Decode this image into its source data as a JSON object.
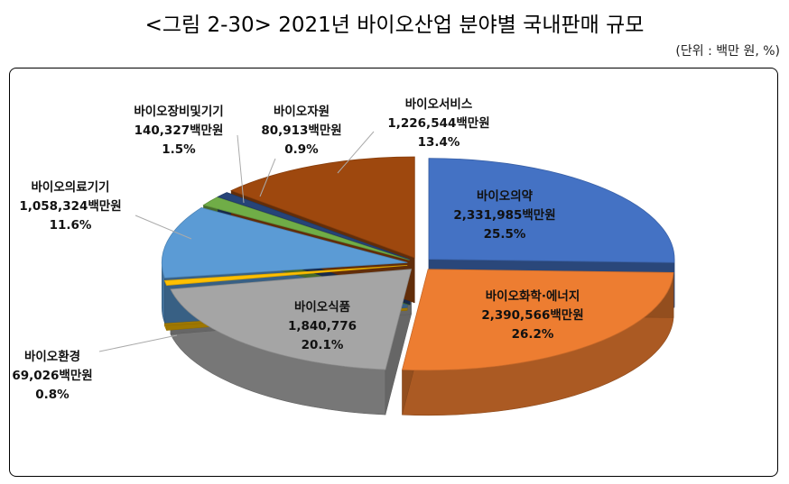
{
  "title": "<그림 2-30> 2021년 바이오산업 분야별 국내판매 규모",
  "unit": "(단위 : 백만 원, %)",
  "chart_data": {
    "type": "pie",
    "title": "<그림 2-30> 2021년 바이오산업 분야별 국내판매 규모",
    "unit": "(단위 : 백만 원, %)",
    "slices": [
      {
        "name": "바이오의약",
        "value": 2331985,
        "value_text": "2,331,985백만원",
        "percent": "25.5%",
        "color": "#4472C4"
      },
      {
        "name": "바이오화학·에너지",
        "value": 2390566,
        "value_text": "2,390,566백만원",
        "percent": "26.2%",
        "color": "#ED7D31"
      },
      {
        "name": "바이오식품",
        "value": 1840776,
        "value_text": "1,840,776",
        "percent": "20.1%",
        "color": "#A5A5A5"
      },
      {
        "name": "바이오환경",
        "value": 69026,
        "value_text": "69,026백만원",
        "percent": "0.8%",
        "color": "#FFC000"
      },
      {
        "name": "바이오의료기기",
        "value": 1058324,
        "value_text": "1,058,324백만원",
        "percent": "11.6%",
        "color": "#5B9BD5"
      },
      {
        "name": "바이오장비및기기",
        "value": 140327,
        "value_text": "140,327백만원",
        "percent": "1.5%",
        "color": "#70AD47"
      },
      {
        "name": "바이오자원",
        "value": 80913,
        "value_text": "80,913백만원",
        "percent": "0.9%",
        "color": "#264478"
      },
      {
        "name": "바이오서비스",
        "value": 1226544,
        "value_text": "1,226,544백만원",
        "percent": "13.4%",
        "color": "#9E480E"
      }
    ]
  }
}
